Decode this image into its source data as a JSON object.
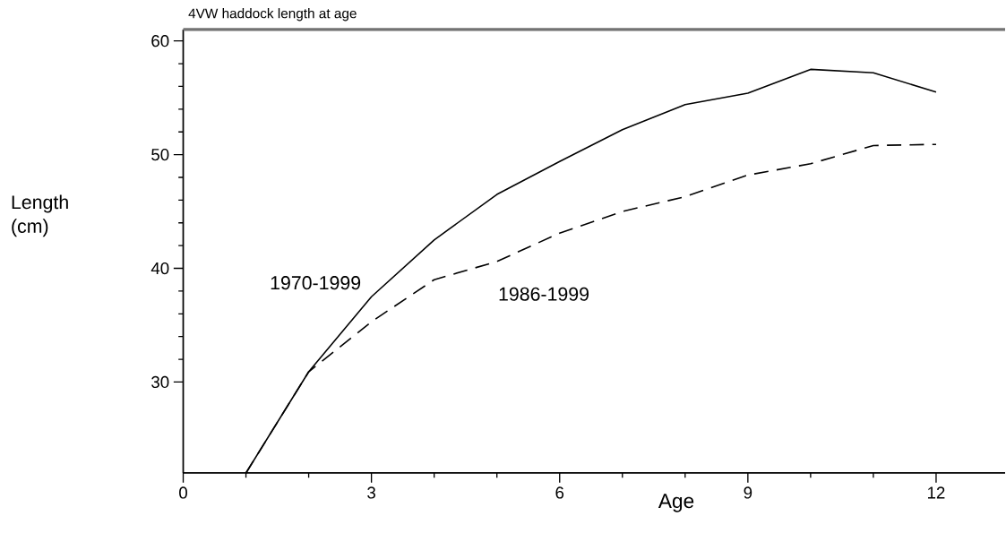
{
  "chart_data": {
    "type": "line",
    "title": "4VW haddock length at age",
    "xlabel": "Age",
    "ylabel": "Length (cm)",
    "x": [
      1,
      2,
      3,
      4,
      5,
      6,
      7,
      8,
      9,
      10,
      11,
      12
    ],
    "series": [
      {
        "name": "1970-1999",
        "color": "#000000",
        "line_style": "solid",
        "values": [
          22,
          30.9,
          37.5,
          42.5,
          46.5,
          49.4,
          52.2,
          54.4,
          55.4,
          57.5,
          57.2,
          55.5
        ]
      },
      {
        "name": "1986-1999",
        "color": "#000000",
        "line_style": "dashed",
        "values": [
          22,
          30.9,
          35.3,
          39.0,
          40.6,
          43.1,
          45.0,
          46.3,
          48.2,
          49.2,
          50.8,
          50.9
        ]
      }
    ],
    "xlim": [
      0,
      13.1
    ],
    "ylim": [
      22,
      61
    ],
    "xticks": [
      0,
      3,
      6,
      9,
      12
    ],
    "yticks": [
      30,
      40,
      50,
      60
    ],
    "grid": false,
    "legend": false,
    "marker": "none"
  }
}
